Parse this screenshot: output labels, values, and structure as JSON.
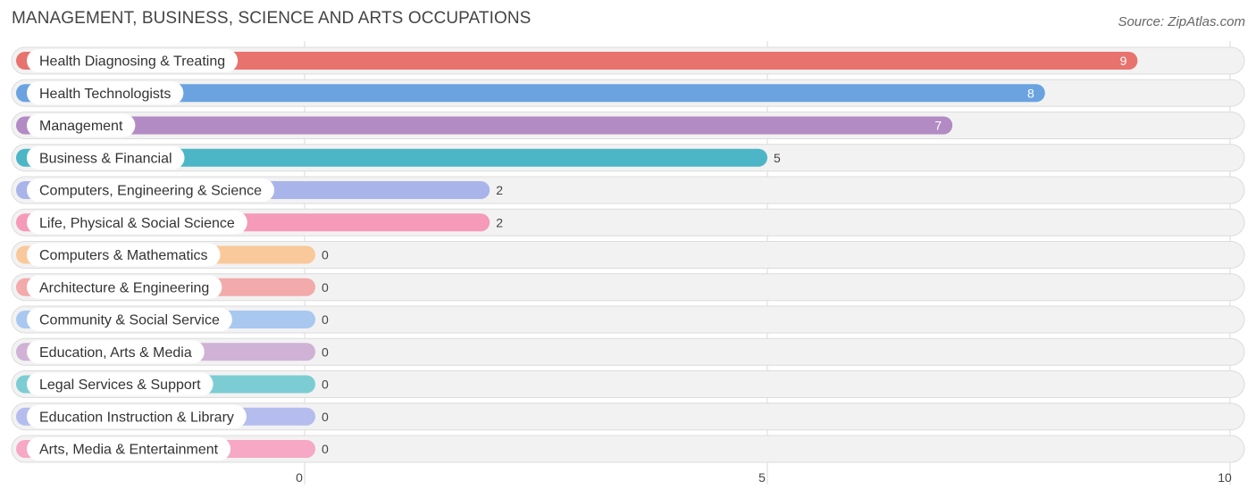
{
  "chart_data": {
    "type": "bar",
    "orientation": "horizontal",
    "title": "MANAGEMENT, BUSINESS, SCIENCE AND ARTS OCCUPATIONS",
    "source": "Source: ZipAtlas.com",
    "categories": [
      "Health Diagnosing & Treating",
      "Health Technologists",
      "Management",
      "Business & Financial",
      "Computers, Engineering & Science",
      "Life, Physical & Social Science",
      "Computers & Mathematics",
      "Architecture & Engineering",
      "Community & Social Service",
      "Education, Arts & Media",
      "Legal Services & Support",
      "Education Instruction & Library",
      "Arts, Media & Entertainment"
    ],
    "values": [
      9,
      8,
      7,
      5,
      2,
      2,
      0,
      0,
      0,
      0,
      0,
      0,
      0
    ],
    "colors": [
      "#e8736e",
      "#6aa3e0",
      "#b28bc4",
      "#4db6c6",
      "#a9b4ea",
      "#f59ab9",
      "#f9c99b",
      "#f2aaaa",
      "#a9c8ef",
      "#cfb2d6",
      "#7ccdd3",
      "#b5bdee",
      "#f6a8c4"
    ],
    "xlim": [
      0,
      10
    ],
    "xticks": [
      0,
      5,
      10
    ],
    "grid": true,
    "xlabel": "",
    "ylabel": ""
  }
}
